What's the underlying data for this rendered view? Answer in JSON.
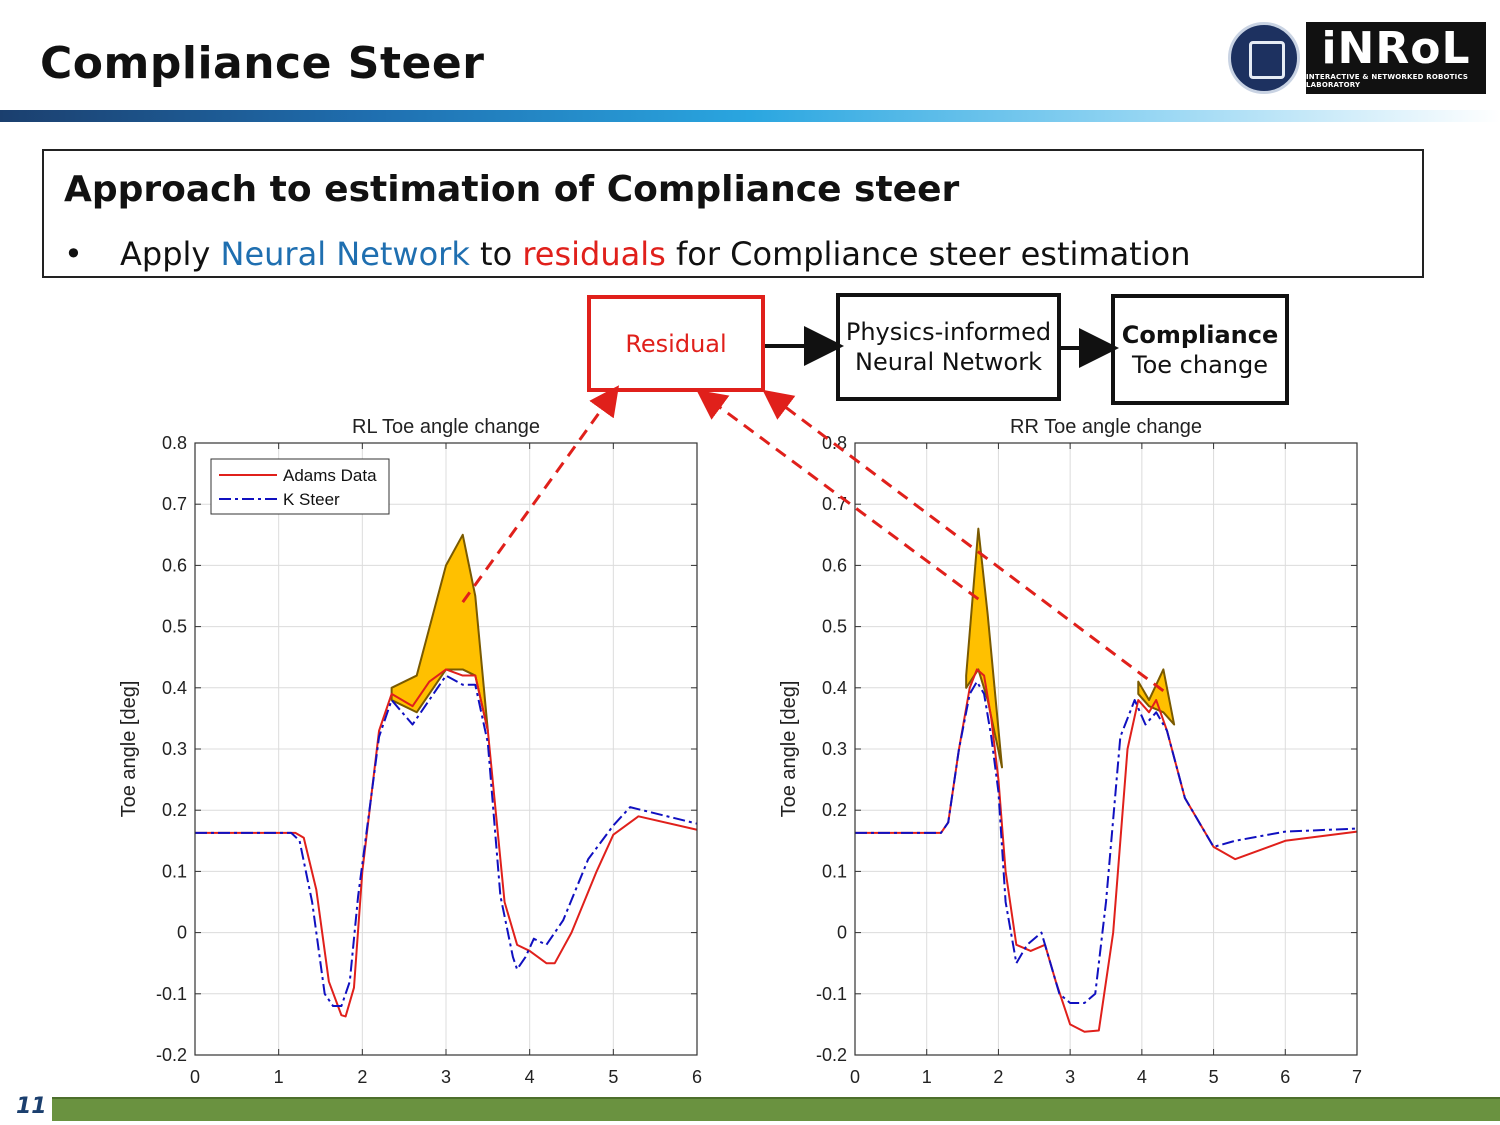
{
  "page": {
    "title": "Compliance Steer",
    "page_number": "11",
    "logo": {
      "main": "iNRoL",
      "sub": "INTERACTIVE & NETWORKED ROBOTICS LABORATORY"
    }
  },
  "box": {
    "heading": "Approach to estimation of Compliance steer",
    "bullet": {
      "marker": "•",
      "p1": "Apply ",
      "p2": "Neural Network",
      "p3": " to ",
      "p4": "residuals",
      "p5": " for Compliance steer estimation"
    }
  },
  "flow": {
    "residual": "Residual",
    "pinn_line1": "Physics-informed",
    "pinn_line2": "Neural Network",
    "comp_line1": "Compliance",
    "comp_line2": "Toe change"
  },
  "colors": {
    "adams": "#e0201b",
    "ksteer": "#1010c0",
    "residual_fill": "#ffc000",
    "arrow": "#e0201b"
  },
  "chart_data": [
    {
      "type": "line",
      "title": "RL Toe angle change",
      "ylabel": "Toe angle [deg]",
      "xlim": [
        0,
        6
      ],
      "ylim": [
        -0.2,
        0.8
      ],
      "xticks": [
        "0",
        "1",
        "2",
        "3",
        "4",
        "5",
        "6"
      ],
      "yticks": [
        "-0.2",
        "-0.1",
        "0",
        "0.1",
        "0.2",
        "0.3",
        "0.4",
        "0.5",
        "0.6",
        "0.7",
        "0.8"
      ],
      "grid": true,
      "legend_position": "top-left",
      "series": [
        {
          "name": "Adams Data",
          "style": "solid",
          "x": [
            0,
            1.2,
            1.3,
            1.45,
            1.6,
            1.75,
            1.8,
            1.9,
            2.0,
            2.2,
            2.35,
            2.6,
            2.8,
            3.0,
            3.2,
            3.35,
            3.5,
            3.7,
            3.85,
            4.0,
            4.2,
            4.3,
            4.5,
            4.8,
            5.0,
            5.3,
            6.0
          ],
          "y": [
            0.163,
            0.163,
            0.155,
            0.07,
            -0.08,
            -0.135,
            -0.137,
            -0.09,
            0.1,
            0.33,
            0.39,
            0.37,
            0.41,
            0.43,
            0.42,
            0.42,
            0.33,
            0.05,
            -0.02,
            -0.03,
            -0.05,
            -0.05,
            0.0,
            0.1,
            0.16,
            0.19,
            0.168
          ]
        },
        {
          "name": "K Steer",
          "style": "dashdot",
          "x": [
            0,
            1.15,
            1.25,
            1.4,
            1.55,
            1.65,
            1.75,
            1.85,
            1.95,
            2.2,
            2.35,
            2.6,
            2.8,
            3.0,
            3.2,
            3.35,
            3.5,
            3.65,
            3.8,
            3.85,
            3.95,
            4.05,
            4.2,
            4.4,
            4.7,
            5.0,
            5.2,
            6.0
          ],
          "y": [
            0.163,
            0.163,
            0.15,
            0.05,
            -0.1,
            -0.12,
            -0.12,
            -0.08,
            0.06,
            0.32,
            0.38,
            0.34,
            0.38,
            0.42,
            0.405,
            0.405,
            0.31,
            0.06,
            -0.04,
            -0.06,
            -0.04,
            -0.01,
            -0.02,
            0.02,
            0.12,
            0.175,
            0.205,
            0.178
          ]
        }
      ],
      "residual_regions": [
        {
          "x": [
            2.35,
            2.65,
            3.0,
            3.2,
            3.35,
            3.5
          ],
          "upper": [
            0.4,
            0.42,
            0.6,
            0.65,
            0.55,
            0.33
          ],
          "lower": [
            0.38,
            0.36,
            0.43,
            0.43,
            0.42,
            0.33
          ]
        }
      ]
    },
    {
      "type": "line",
      "title": "RR Toe angle change",
      "ylabel": "Toe angle [deg]",
      "xlim": [
        0,
        7
      ],
      "ylim": [
        -0.2,
        0.8
      ],
      "xticks": [
        "0",
        "1",
        "2",
        "3",
        "4",
        "5",
        "6",
        "7"
      ],
      "yticks": [
        "-0.2",
        "-0.1",
        "0",
        "0.1",
        "0.2",
        "0.3",
        "0.4",
        "0.5",
        "0.6",
        "0.7",
        "0.8"
      ],
      "grid": true,
      "series": [
        {
          "name": "Adams Data",
          "style": "solid",
          "x": [
            0,
            1.2,
            1.3,
            1.45,
            1.6,
            1.7,
            1.8,
            1.9,
            2.0,
            2.1,
            2.25,
            2.45,
            2.65,
            2.8,
            3.0,
            3.2,
            3.4,
            3.6,
            3.8,
            3.95,
            4.1,
            4.2,
            4.35,
            4.6,
            5.0,
            5.3,
            6.0,
            7.0
          ],
          "y": [
            0.163,
            0.163,
            0.18,
            0.3,
            0.4,
            0.43,
            0.42,
            0.35,
            0.25,
            0.1,
            -0.02,
            -0.03,
            -0.02,
            -0.08,
            -0.15,
            -0.162,
            -0.16,
            0.0,
            0.3,
            0.38,
            0.36,
            0.38,
            0.33,
            0.22,
            0.14,
            0.12,
            0.15,
            0.165
          ]
        },
        {
          "name": "K Steer",
          "style": "dashdot",
          "x": [
            0,
            1.2,
            1.3,
            1.45,
            1.6,
            1.7,
            1.8,
            1.9,
            2.0,
            2.1,
            2.25,
            2.4,
            2.6,
            2.75,
            2.85,
            3.0,
            3.2,
            3.35,
            3.5,
            3.7,
            3.9,
            4.05,
            4.2,
            4.35,
            4.6,
            5.0,
            5.3,
            6.0,
            7.0
          ],
          "y": [
            0.163,
            0.163,
            0.18,
            0.3,
            0.39,
            0.41,
            0.39,
            0.32,
            0.23,
            0.05,
            -0.05,
            -0.02,
            0.0,
            -0.06,
            -0.1,
            -0.115,
            -0.115,
            -0.1,
            0.05,
            0.32,
            0.38,
            0.34,
            0.36,
            0.33,
            0.22,
            0.14,
            0.15,
            0.165,
            0.17
          ]
        }
      ],
      "residual_regions": [
        {
          "x": [
            1.55,
            1.72,
            1.85,
            2.05
          ],
          "upper": [
            0.42,
            0.66,
            0.52,
            0.27
          ],
          "lower": [
            0.4,
            0.43,
            0.38,
            0.27
          ]
        },
        {
          "x": [
            3.95,
            4.1,
            4.3,
            4.45
          ],
          "upper": [
            0.41,
            0.38,
            0.43,
            0.34
          ],
          "lower": [
            0.39,
            0.37,
            0.36,
            0.34
          ]
        }
      ]
    }
  ]
}
